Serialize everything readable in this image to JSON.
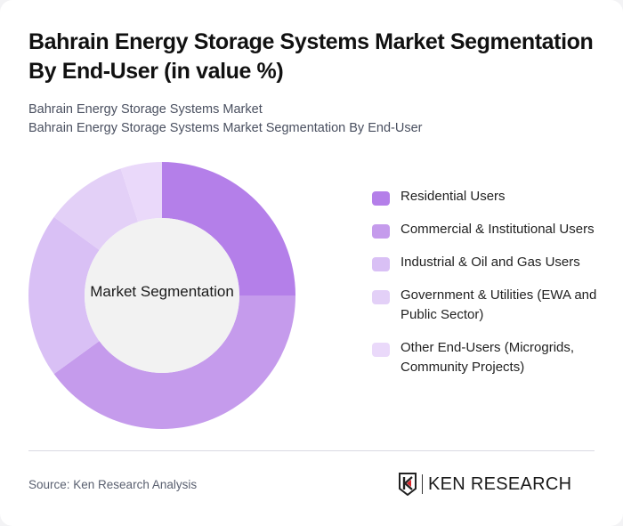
{
  "header": {
    "title": "Bahrain Energy Storage Systems Market Segmentation By End-User (in value %)",
    "subtitle_line1": "Bahrain Energy Storage Systems Market",
    "subtitle_line2": "Bahrain Energy Storage Systems Market Segmentation By End-User"
  },
  "chart": {
    "center_label": "Market Segmentation"
  },
  "legend": [
    {
      "label": "Residential Users",
      "color": "#b47fe9"
    },
    {
      "label": "Commercial & Institutional Users",
      "color": "#c59bec"
    },
    {
      "label": "Industrial & Oil and Gas Users",
      "color": "#d9c0f5"
    },
    {
      "label": "Government & Utilities (EWA and Public Sector)",
      "color": "#e3d0f7"
    },
    {
      "label": "Other End-Users (Microgrids, Community Projects)",
      "color": "#ead9fa"
    }
  ],
  "footer": {
    "source": "Source: Ken Research Analysis",
    "logo_text": "KEN RESEARCH"
  },
  "chart_data": {
    "type": "pie",
    "subtype": "donut",
    "title": "Bahrain Energy Storage Systems Market Segmentation By End-User (in value %)",
    "center_label": "Market Segmentation",
    "categories": [
      "Residential Users",
      "Commercial & Institutional Users",
      "Industrial & Oil and Gas Users",
      "Government & Utilities (EWA and Public Sector)",
      "Other End-Users (Microgrids, Community Projects)"
    ],
    "values": [
      25,
      40,
      20,
      10,
      5
    ],
    "colors": [
      "#b47fe9",
      "#c59bec",
      "#d9c0f5",
      "#e3d0f7",
      "#ead9fa"
    ],
    "unit": "%",
    "start_angle": "12 o'clock, clockwise",
    "legend_position": "right"
  }
}
